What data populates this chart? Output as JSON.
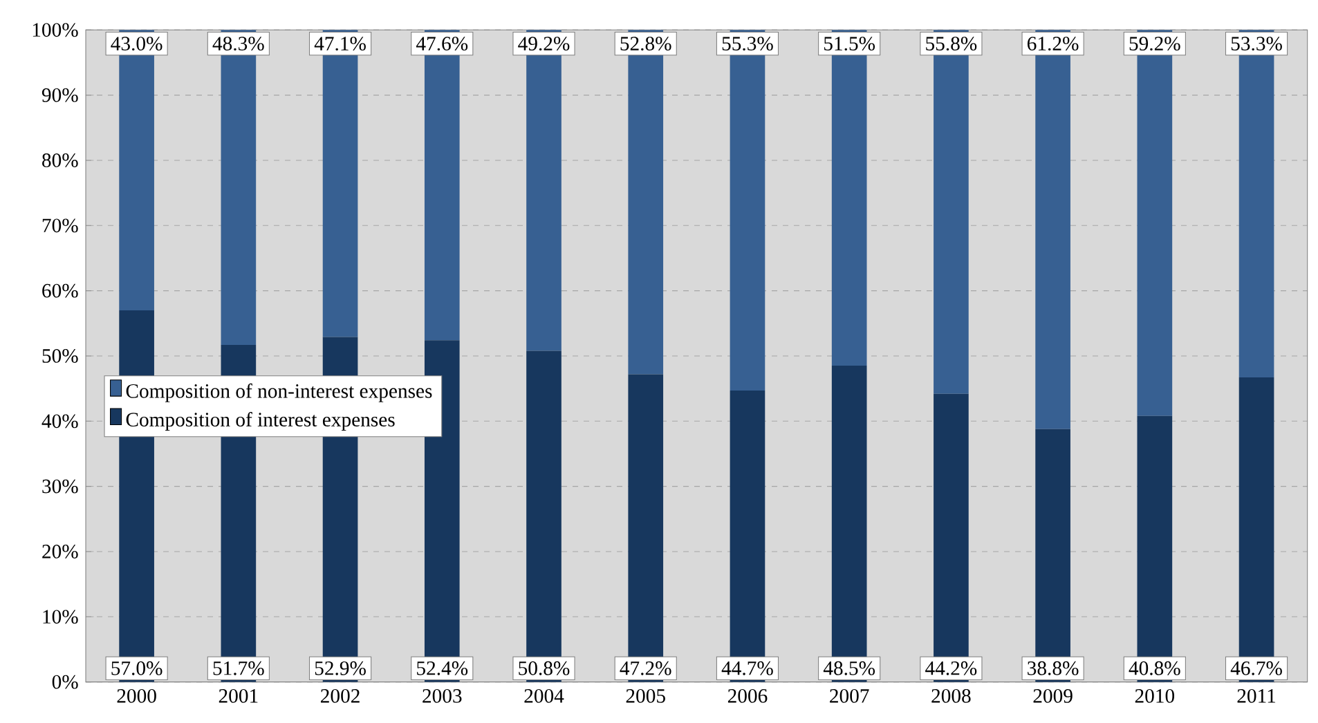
{
  "chart_data": {
    "type": "bar",
    "stacked": true,
    "categories": [
      "2000",
      "2001",
      "2002",
      "2003",
      "2004",
      "2005",
      "2006",
      "2007",
      "2008",
      "2009",
      "2010",
      "2011"
    ],
    "series": [
      {
        "name": "Composition of interest expenses",
        "color": "#17375e",
        "values": [
          57.0,
          51.7,
          52.9,
          52.4,
          50.8,
          47.2,
          44.7,
          48.5,
          44.2,
          38.8,
          40.8,
          46.7
        ],
        "value_labels": [
          "57.0%",
          "51.7%",
          "52.9%",
          "52.4%",
          "50.8%",
          "47.2%",
          "44.7%",
          "48.5%",
          "44.2%",
          "38.8%",
          "40.8%",
          "46.7%"
        ]
      },
      {
        "name": "Composition of non-interest expenses",
        "color": "#376092",
        "values": [
          43.0,
          48.3,
          47.1,
          47.6,
          49.2,
          52.8,
          55.3,
          51.5,
          55.8,
          61.2,
          59.2,
          53.3
        ],
        "value_labels": [
          "43.0%",
          "48.3%",
          "47.1%",
          "47.6%",
          "49.2%",
          "52.8%",
          "55.3%",
          "51.5%",
          "55.8%",
          "61.2%",
          "59.2%",
          "53.3%"
        ]
      }
    ],
    "ylim": [
      0,
      100
    ],
    "yticks": [
      {
        "value": 0,
        "label": "0%"
      },
      {
        "value": 10,
        "label": "10%"
      },
      {
        "value": 20,
        "label": "20%"
      },
      {
        "value": 30,
        "label": "30%"
      },
      {
        "value": 40,
        "label": "40%"
      },
      {
        "value": 50,
        "label": "50%"
      },
      {
        "value": 60,
        "label": "60%"
      },
      {
        "value": 70,
        "label": "70%"
      },
      {
        "value": 80,
        "label": "80%"
      },
      {
        "value": 90,
        "label": "90%"
      },
      {
        "value": 100,
        "label": "100%"
      }
    ],
    "grid": "y",
    "legend": "left"
  }
}
